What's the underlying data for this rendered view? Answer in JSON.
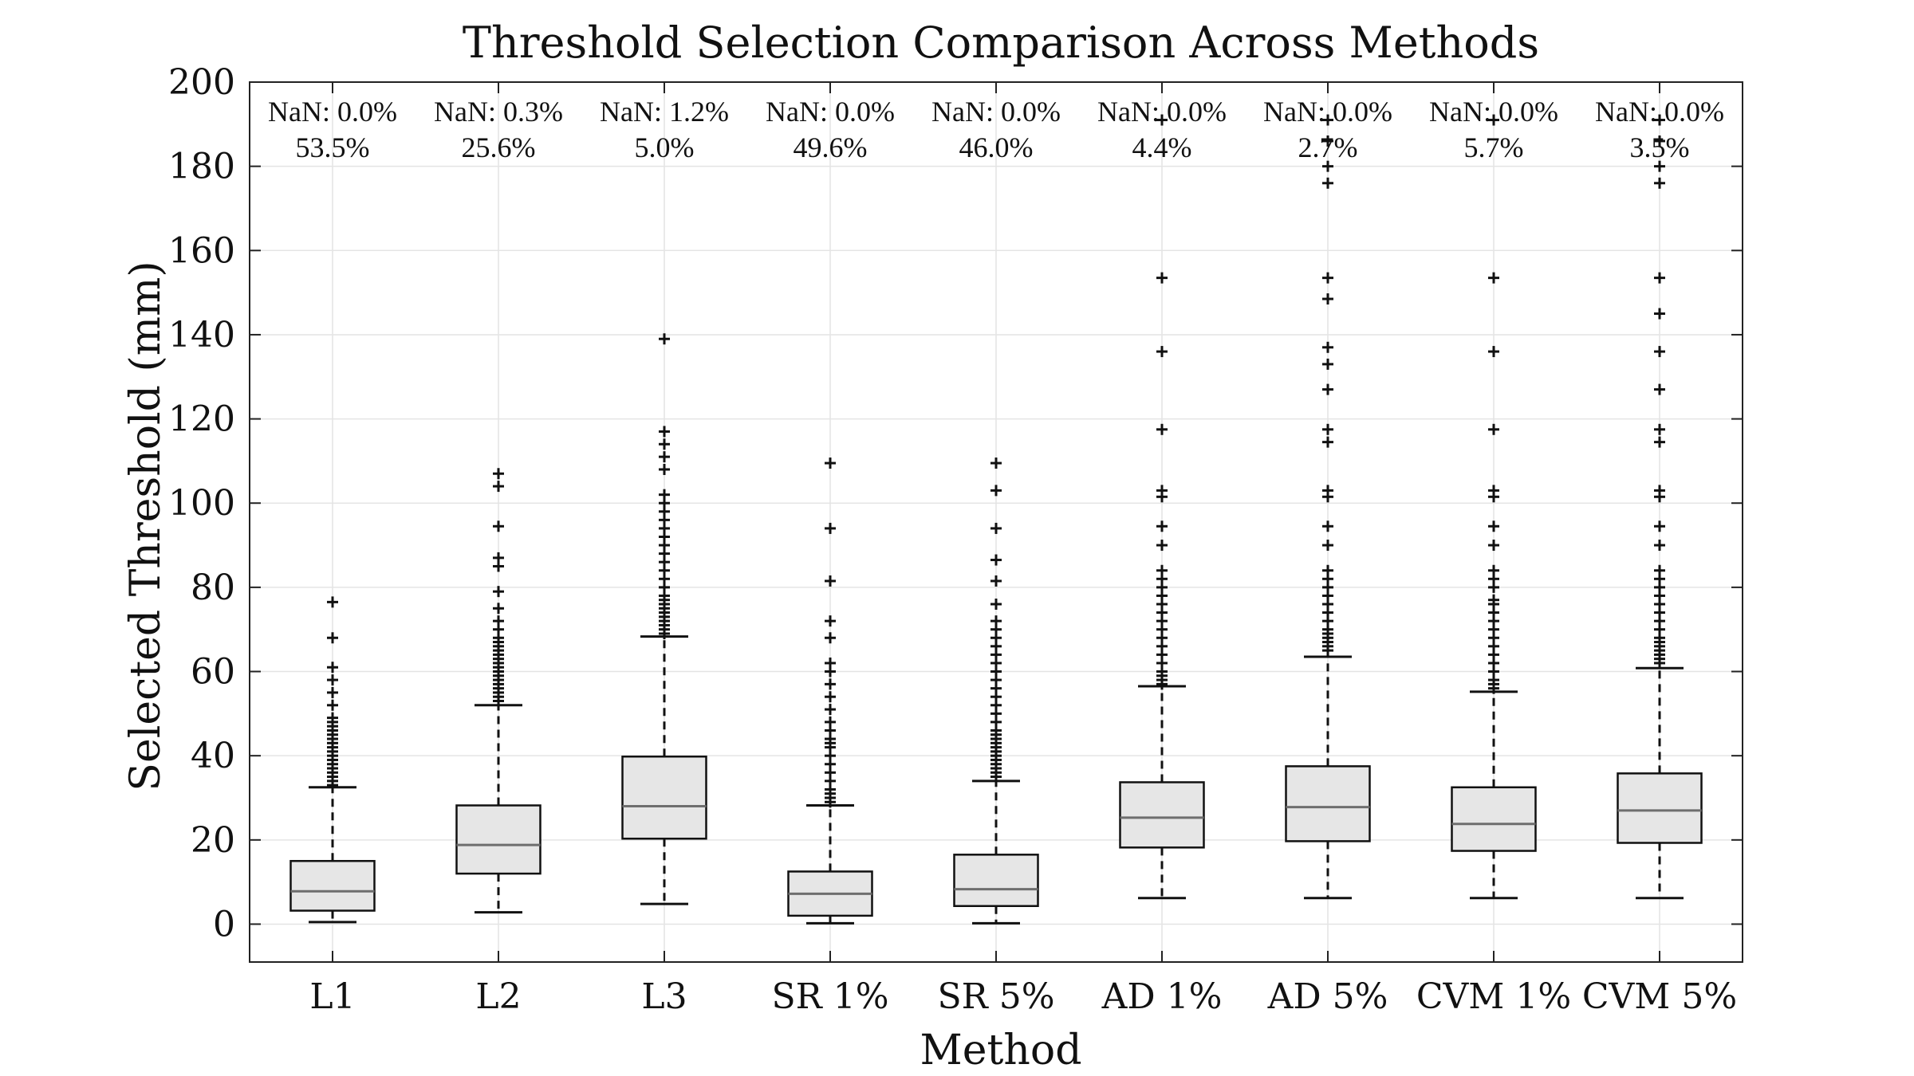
{
  "chart_data": {
    "type": "boxplot",
    "title": "Threshold Selection Comparison Across Methods",
    "xlabel": "Method",
    "ylabel": "Selected Threshold (mm)",
    "ylim": [
      -9,
      200
    ],
    "yticks": [
      0,
      20,
      40,
      60,
      80,
      100,
      120,
      140,
      160,
      180,
      200
    ],
    "grid": true,
    "colors": {
      "box_fill": "#e6e6e6",
      "median": "#6e6e6e",
      "whisker": "#111111",
      "outlier": "#111111",
      "grid": "#e4e4e4"
    },
    "categories": [
      "L1",
      "L2",
      "L3",
      "SR 1%",
      "SR 5%",
      "AD 1%",
      "AD 5%",
      "CVM 1%",
      "CVM 5%"
    ],
    "annotations": [
      {
        "nan": "NaN: 0.0%",
        "pct": "53.5%"
      },
      {
        "nan": "NaN: 0.3%",
        "pct": "25.6%"
      },
      {
        "nan": "NaN: 1.2%",
        "pct": "5.0%"
      },
      {
        "nan": "NaN: 0.0%",
        "pct": "49.6%"
      },
      {
        "nan": "NaN: 0.0%",
        "pct": "46.0%"
      },
      {
        "nan": "NaN: 0.0%",
        "pct": "4.4%"
      },
      {
        "nan": "NaN: 0.0%",
        "pct": "2.7%"
      },
      {
        "nan": "NaN: 0.0%",
        "pct": "5.7%"
      },
      {
        "nan": "NaN: 0.0%",
        "pct": "3.5%"
      }
    ],
    "boxes": [
      {
        "min": 0.5,
        "q1": 3.2,
        "median": 7.8,
        "q3": 15.0,
        "max": 32.5,
        "outliers": [
          33,
          34,
          35,
          36,
          37,
          38,
          39,
          40,
          41,
          42,
          43,
          44,
          45,
          46,
          47,
          48,
          49,
          52,
          55,
          58,
          61,
          68,
          76.5
        ]
      },
      {
        "min": 2.8,
        "q1": 12.0,
        "median": 18.8,
        "q3": 28.2,
        "max": 52.0,
        "outliers": [
          53,
          54,
          55,
          56,
          57,
          58,
          59,
          60,
          61,
          62,
          63,
          64,
          65,
          66,
          67,
          68,
          70,
          72,
          75,
          79,
          85,
          87,
          94.5,
          104,
          107
        ]
      },
      {
        "min": 4.8,
        "q1": 20.3,
        "median": 28.0,
        "q3": 39.8,
        "max": 68.3,
        "outliers": [
          69,
          70,
          71,
          72,
          73,
          74,
          75,
          76,
          77,
          78,
          80,
          82,
          84,
          86,
          88,
          90,
          92,
          94,
          96,
          98,
          100,
          102,
          108,
          111,
          114,
          117,
          139
        ]
      },
      {
        "min": 0.2,
        "q1": 2.0,
        "median": 7.2,
        "q3": 12.5,
        "max": 28.2,
        "outliers": [
          29,
          30,
          31,
          32,
          34,
          36,
          38,
          40,
          42,
          43,
          44,
          46,
          48,
          51,
          54,
          57,
          60,
          62,
          68,
          72,
          81.5,
          94,
          109.5
        ]
      },
      {
        "min": 0.2,
        "q1": 4.3,
        "median": 8.3,
        "q3": 16.5,
        "max": 34.0,
        "outliers": [
          35,
          36,
          37,
          38,
          39,
          40,
          41,
          42,
          43,
          44,
          45,
          46,
          48,
          50,
          52,
          54,
          56,
          58,
          60,
          62,
          64,
          66,
          68,
          70,
          72,
          76,
          81.5,
          86.5,
          94,
          103,
          109.5
        ]
      },
      {
        "min": 6.2,
        "q1": 18.2,
        "median": 25.3,
        "q3": 33.7,
        "max": 56.5,
        "outliers": [
          57,
          58,
          59,
          60,
          62,
          64,
          66,
          68,
          70,
          72,
          74,
          76,
          78,
          80,
          82,
          84,
          90,
          94.5,
          101.5,
          103,
          117.5,
          136,
          153.5,
          191
        ]
      },
      {
        "min": 6.2,
        "q1": 19.7,
        "median": 27.8,
        "q3": 37.5,
        "max": 63.5,
        "outliers": [
          65,
          66,
          67,
          68,
          69,
          70,
          72,
          74,
          76,
          78,
          80,
          82,
          84,
          90,
          94.5,
          101.5,
          103,
          114.5,
          117.5,
          127,
          133,
          137,
          148.5,
          153.5,
          176,
          180,
          186,
          191
        ]
      },
      {
        "min": 6.2,
        "q1": 17.4,
        "median": 23.8,
        "q3": 32.5,
        "max": 55.2,
        "outliers": [
          56,
          57,
          58,
          60,
          62,
          64,
          66,
          68,
          70,
          72,
          74,
          76,
          77,
          80,
          82,
          84,
          90,
          94.5,
          101.5,
          103,
          117.5,
          136,
          153.5,
          191
        ]
      },
      {
        "min": 6.2,
        "q1": 19.3,
        "median": 27.0,
        "q3": 35.8,
        "max": 60.8,
        "outliers": [
          62,
          63,
          64,
          65,
          66,
          67,
          68,
          70,
          72,
          74,
          76,
          78,
          80,
          82,
          84,
          90,
          94.5,
          101.5,
          103,
          114.5,
          117.5,
          127,
          136,
          145,
          153.5,
          176,
          180,
          186,
          191
        ]
      }
    ]
  }
}
